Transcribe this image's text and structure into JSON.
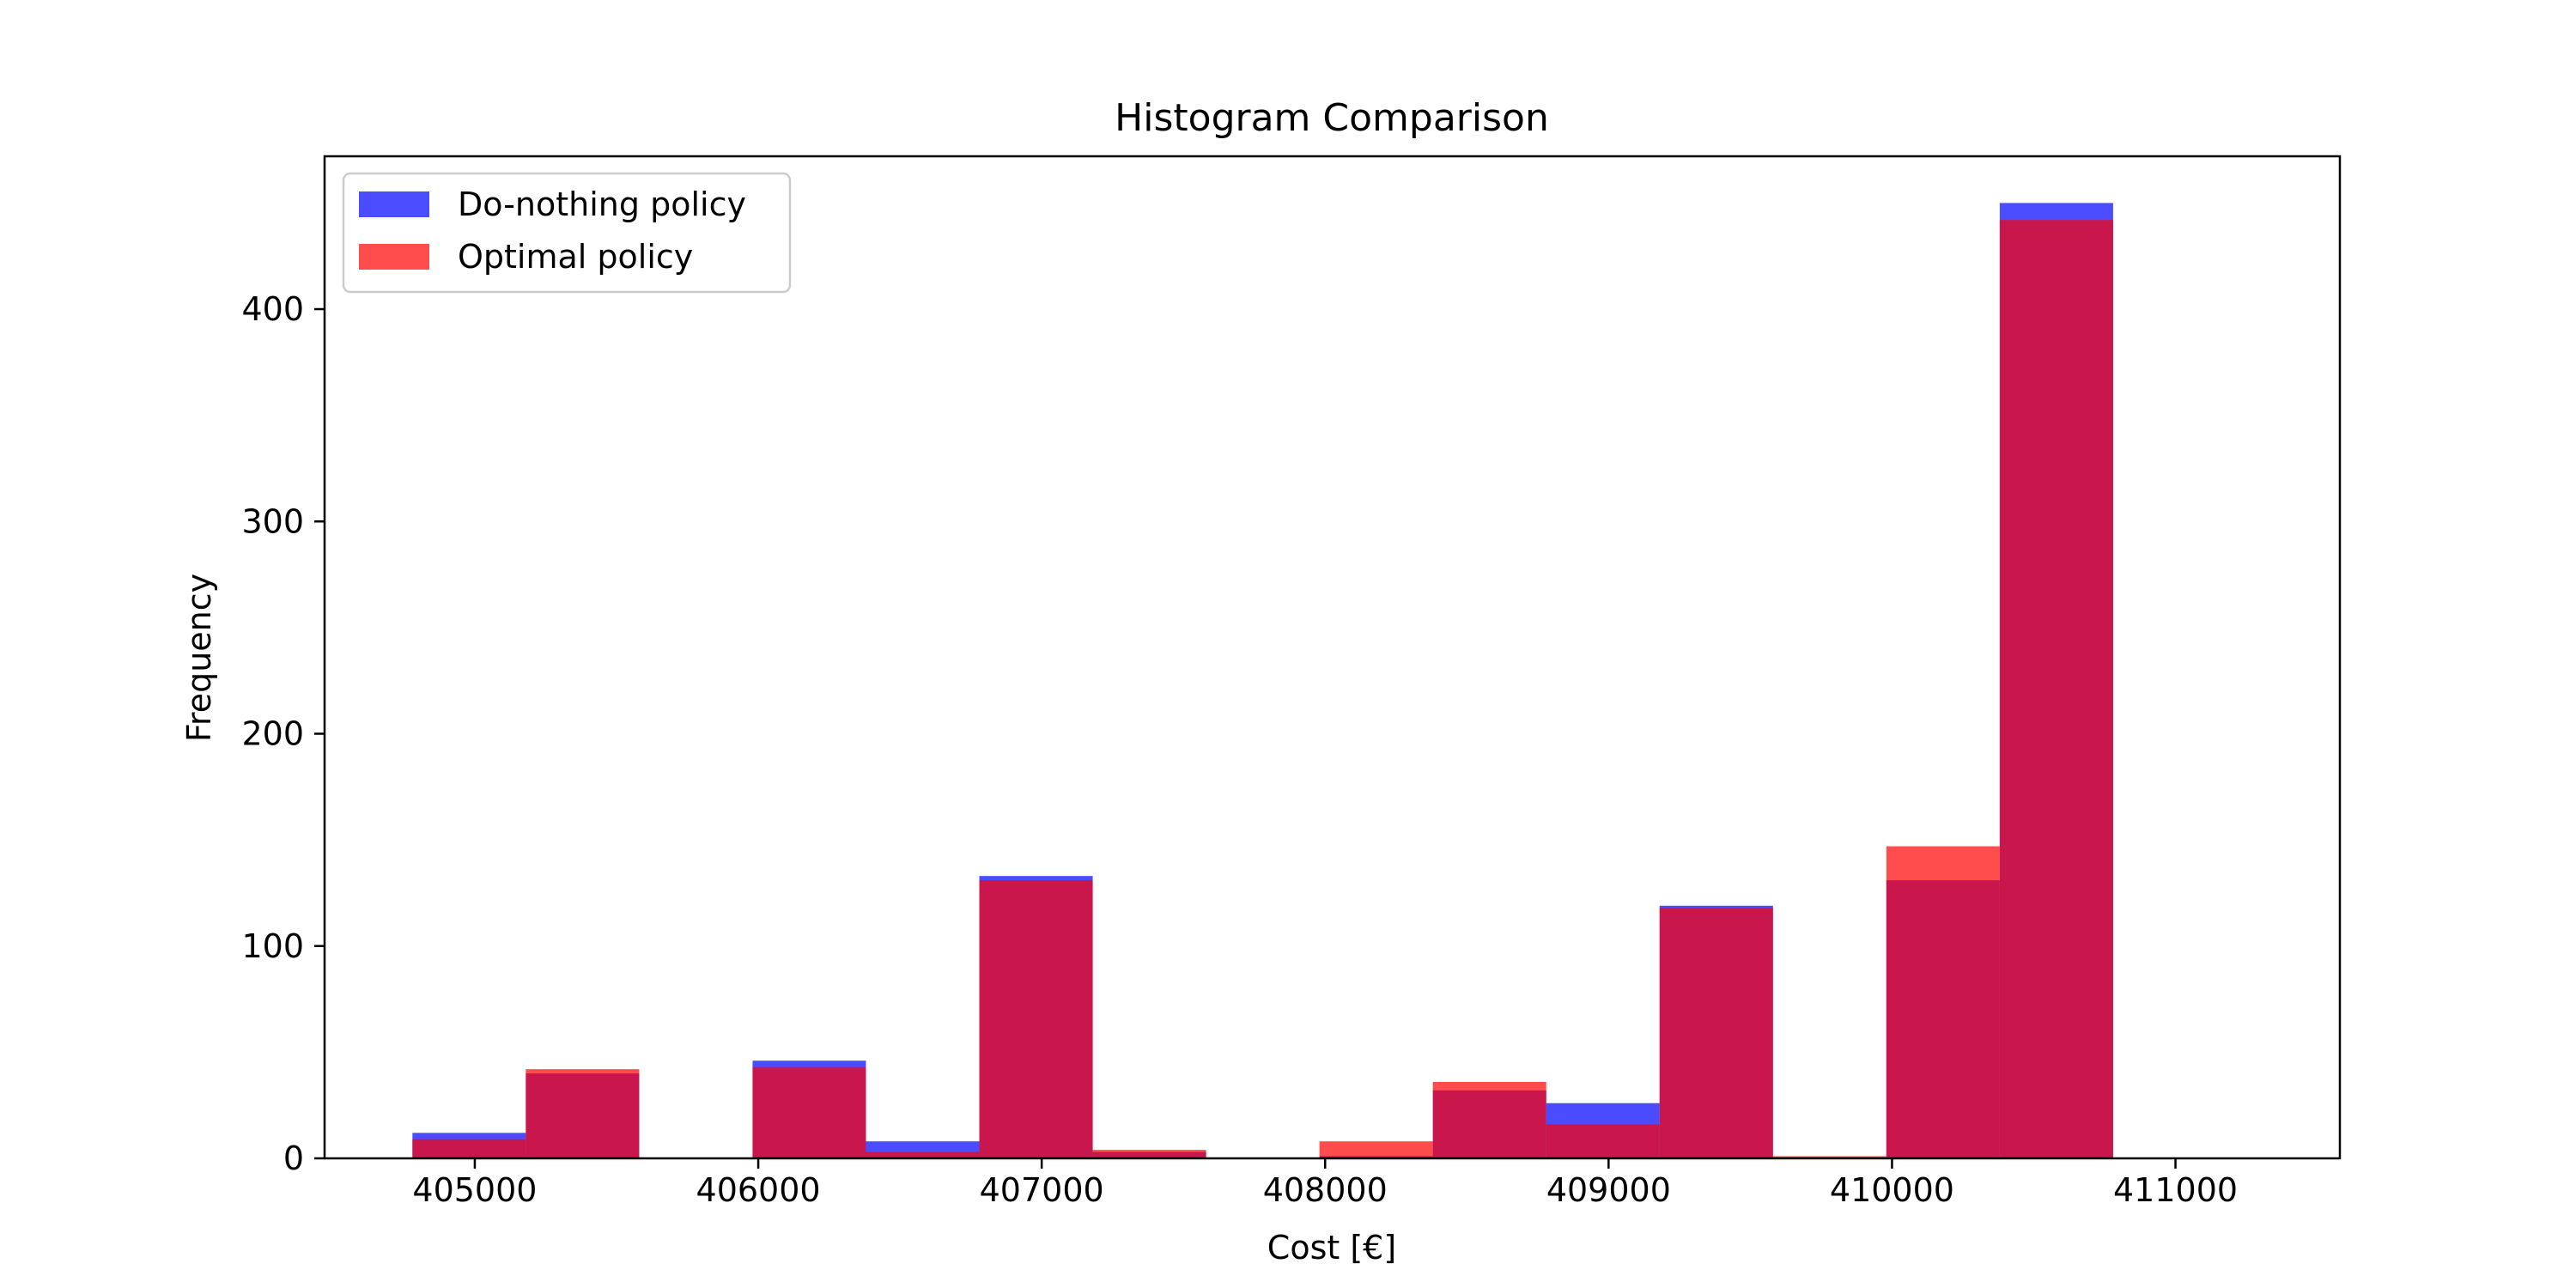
{
  "chart_data": {
    "type": "bar",
    "title": "Histogram Comparison",
    "xlabel": "Cost [€]",
    "ylabel": "Frequency",
    "xlim": [
      404470,
      411580
    ],
    "ylim": [
      0,
      472
    ],
    "xticks": [
      405000,
      406000,
      407000,
      408000,
      409000,
      410000,
      411000
    ],
    "xtick_labels": [
      "405000",
      "406000",
      "407000",
      "408000",
      "409000",
      "410000",
      "411000"
    ],
    "yticks": [
      0,
      100,
      200,
      300,
      400
    ],
    "ytick_labels": [
      "0",
      "100",
      "200",
      "300",
      "400"
    ],
    "grid": false,
    "legend": "top-left",
    "bin_edges": [
      404780,
      405180,
      405580,
      405980,
      406380,
      406780,
      407180,
      407580,
      407980,
      408380,
      408780,
      409180,
      409580,
      409980,
      410380,
      410780
    ],
    "series": [
      {
        "name": "Do-nothing policy",
        "color": "#0000ff",
        "alpha": 0.7,
        "values": [
          12,
          40,
          0,
          46,
          8,
          133,
          3,
          0,
          1,
          32,
          26,
          119,
          0,
          131,
          450
        ]
      },
      {
        "name": "Optimal policy",
        "color": "#ff0000",
        "alpha": 0.7,
        "values": [
          9,
          42,
          0,
          43,
          3,
          131,
          4,
          0,
          8,
          36,
          16,
          118,
          1,
          147,
          442
        ]
      }
    ]
  }
}
